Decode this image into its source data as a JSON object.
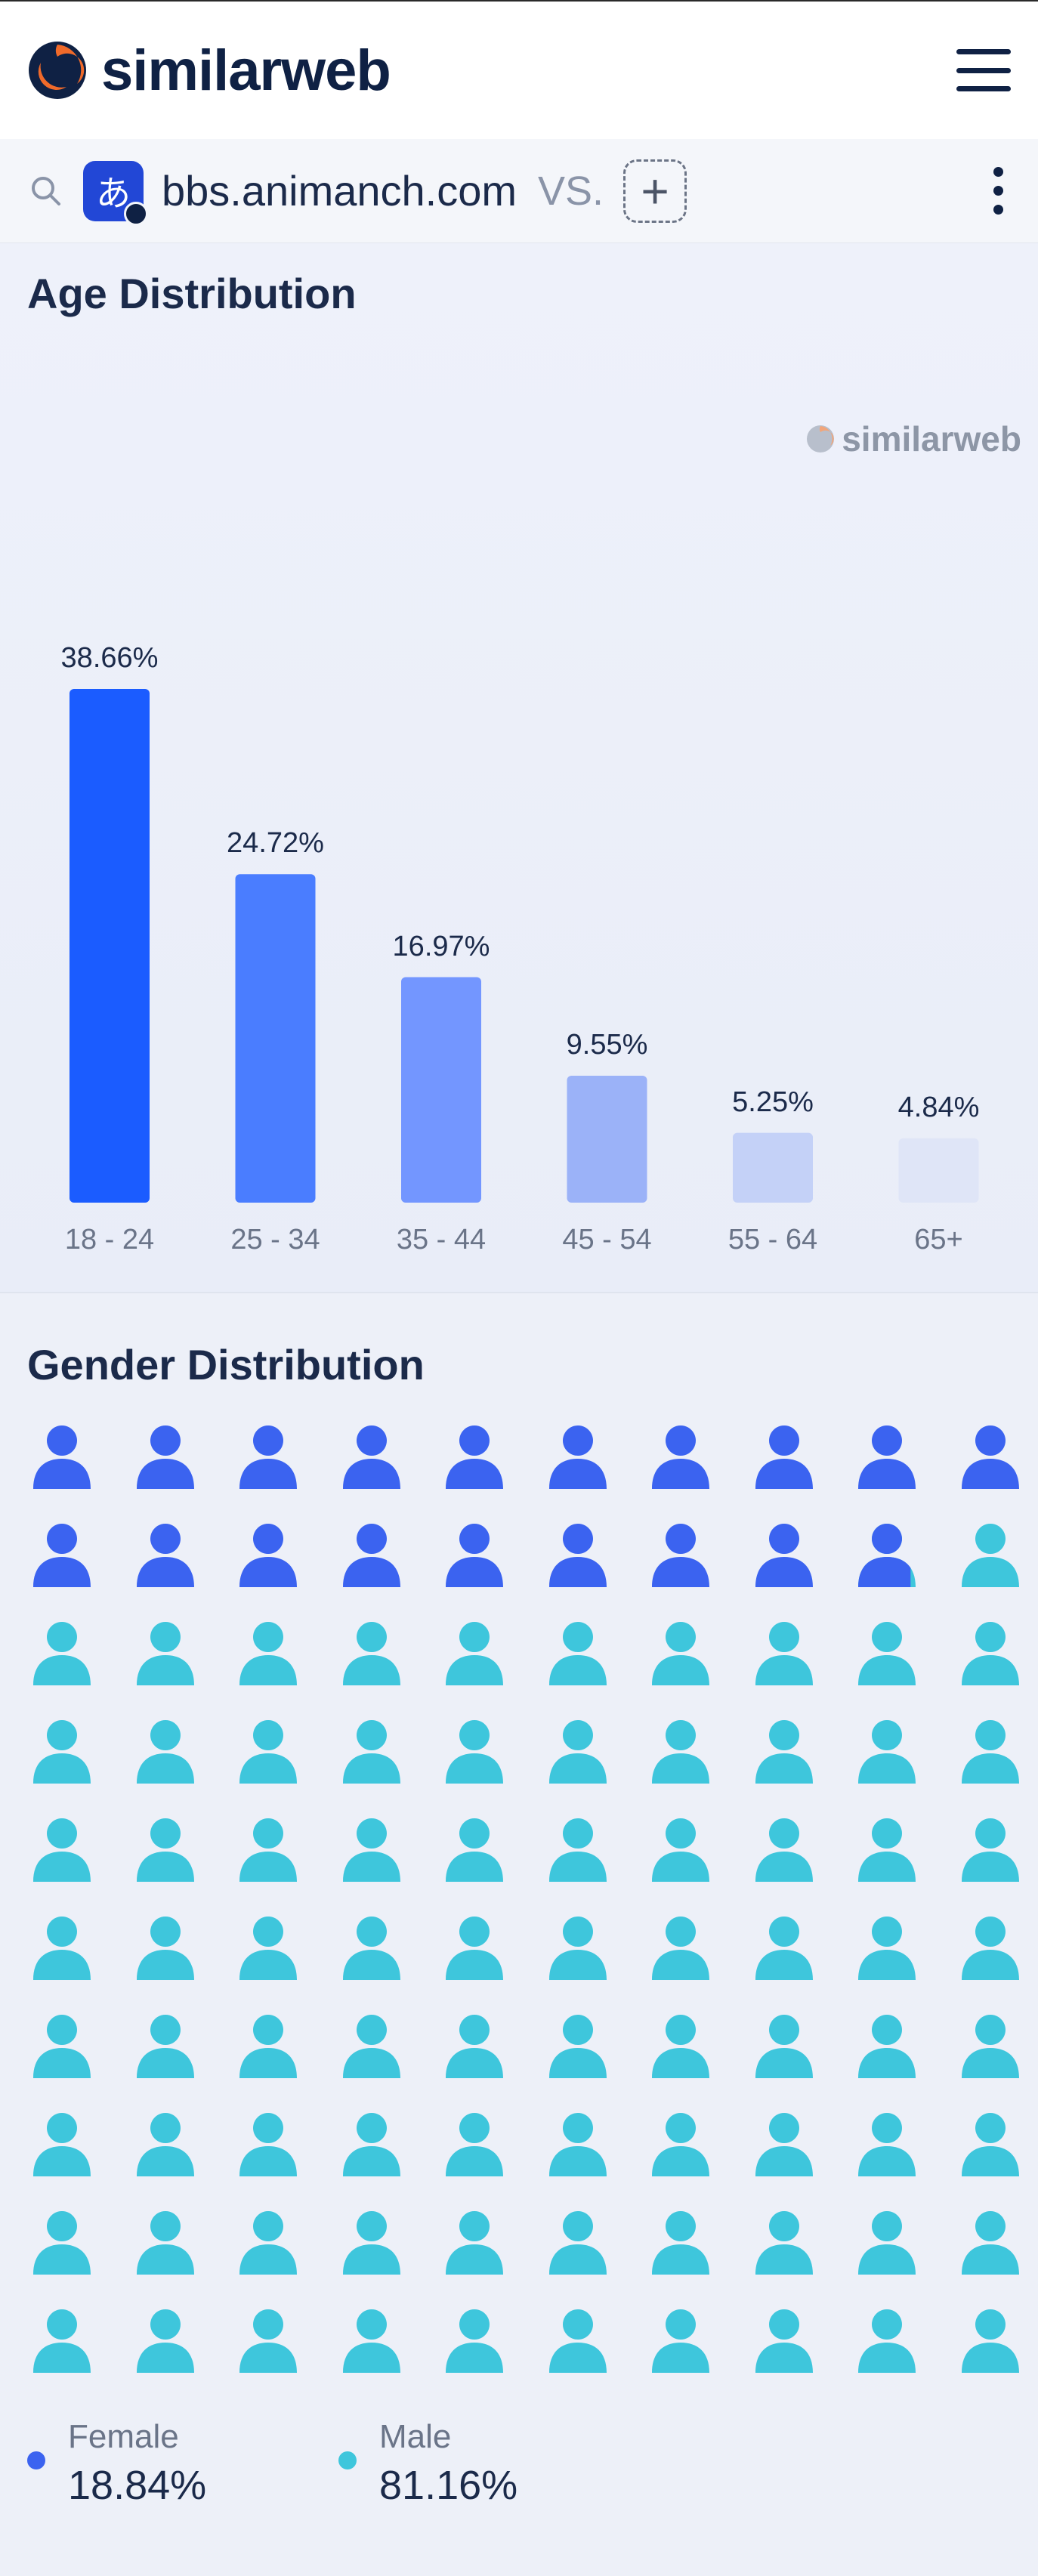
{
  "header": {
    "brand": "similarweb"
  },
  "search": {
    "domain": "bbs.animanch.com",
    "favicon_glyph": "あ",
    "vs": "VS.",
    "add": "+"
  },
  "age": {
    "title": "Age Distribution",
    "watermark": "similarweb"
  },
  "chart_data": {
    "type": "bar",
    "categories": [
      "18 - 24",
      "25 - 34",
      "35 - 44",
      "45 - 54",
      "55 - 64",
      "65+"
    ],
    "values": [
      38.66,
      24.72,
      16.97,
      9.55,
      5.25,
      4.84
    ],
    "value_labels": [
      "38.66%",
      "24.72%",
      "16.97%",
      "9.55%",
      "5.25%",
      "4.84%"
    ],
    "colors": [
      "#1b5cff",
      "#4a7dff",
      "#7396ff",
      "#9bb2f8",
      "#c4d1f7",
      "#dfe5f7"
    ],
    "title": "Age Distribution",
    "ylim": [
      0,
      38.66
    ],
    "grid": false
  },
  "gender": {
    "title": "Gender Distribution",
    "female_fraction": 0.1884,
    "female_color": "#3b63f0",
    "male_color": "#3ec6dc",
    "legend": [
      {
        "name": "Female",
        "value": "18.84%",
        "color": "#3b63f0"
      },
      {
        "name": "Male",
        "value": "81.16%",
        "color": "#3ec6dc"
      }
    ]
  },
  "icons": {
    "logo": "similarweb-logo-icon",
    "menu": "hamburger-menu-icon",
    "search": "search-icon",
    "more": "kebab-menu-icon",
    "person": "person-icon"
  }
}
